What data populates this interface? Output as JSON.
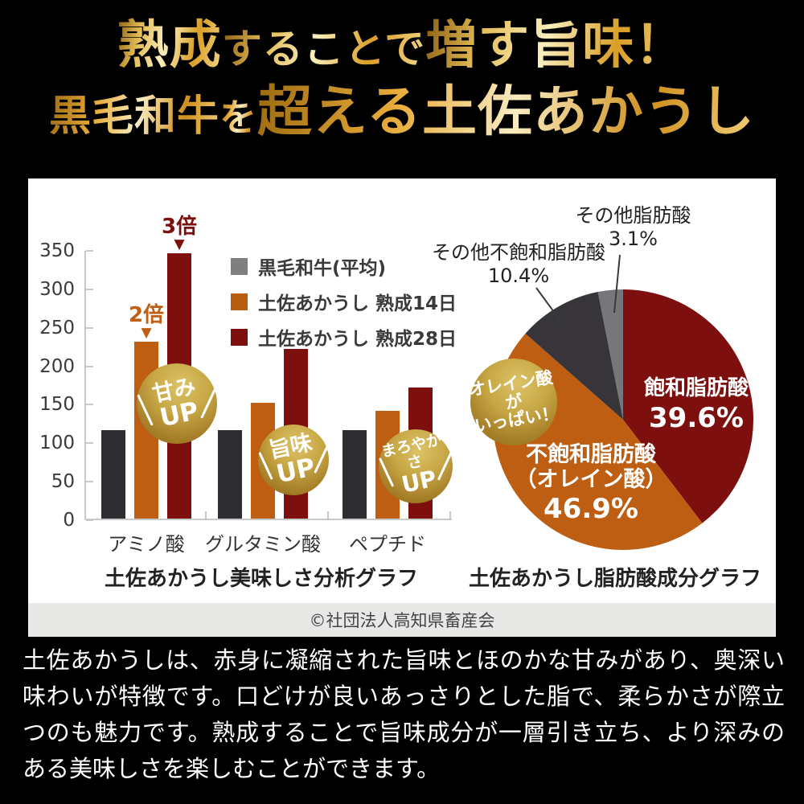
{
  "header": {
    "line1": [
      {
        "text": "熟成"
      },
      {
        "text": "することで"
      },
      {
        "text": "増す旨味！"
      }
    ],
    "line2": [
      {
        "text": "黒毛和牛"
      },
      {
        "text": "を"
      },
      {
        "text": "超える土佐あかうし"
      }
    ]
  },
  "chart_data": [
    {
      "type": "bar",
      "title": "土佐あかうし美味しさ分析グラフ",
      "categories": [
        "アミノ酸",
        "グルタミン酸",
        "ペプチド"
      ],
      "yticks": [
        0,
        50,
        100,
        150,
        200,
        250,
        300,
        350
      ],
      "ylim": [
        0,
        350
      ],
      "grid": false,
      "legend_position": "top-right",
      "series": [
        {
          "name": "黒毛和牛(平均)",
          "legend_color": "#7f7f7f",
          "bar_color": "#2e2d32",
          "values": [
            115,
            115,
            115
          ]
        },
        {
          "name": "土佐あかうし 熟成14日",
          "legend_color": "#b85c10",
          "bar_color": "#bd5e13",
          "values": [
            230,
            150,
            140
          ]
        },
        {
          "name": "土佐あかうし 熟成28日",
          "legend_color": "#7d100f",
          "bar_color": "#7d100f",
          "values": [
            345,
            220,
            170
          ]
        }
      ],
      "annotations": [
        {
          "text": "2倍",
          "color": "#c05e14",
          "series_index": 1,
          "category_index": 0,
          "arrow_icon": "▼"
        },
        {
          "text": "3倍",
          "color": "#7d100f",
          "series_index": 2,
          "category_index": 0,
          "arrow_icon": "▼"
        }
      ],
      "badges": [
        {
          "line1": "甘み",
          "line2": "UP"
        },
        {
          "line1": "旨味",
          "line2": "UP"
        },
        {
          "line1": "まろやかさ",
          "line2": "UP"
        }
      ]
    },
    {
      "type": "pie",
      "title": "土佐あかうし脂肪酸成分グラフ",
      "clockwise_from_top": true,
      "slices": [
        {
          "label": "飽和脂肪酸",
          "pct": "39.6%",
          "value": 39.6,
          "color": "#7d100f",
          "label_position": "inside"
        },
        {
          "label": "不飽和脂肪酸",
          "label2": "（オレイン酸）",
          "pct": "46.9%",
          "value": 46.9,
          "color": "#bd5e13",
          "label_position": "inside"
        },
        {
          "label": "その他不飽和脂肪酸",
          "pct": "10.4%",
          "value": 10.4,
          "color": "#37353a",
          "label_position": "outside"
        },
        {
          "label": "その他脂肪酸",
          "pct": "3.1%",
          "value": 3.1,
          "color": "#77767b",
          "label_position": "outside"
        }
      ],
      "badge": {
        "line1": "オレイン酸が",
        "line2": "いっぱい！"
      }
    }
  ],
  "copyright": "©社団法人高知県畜産会",
  "description": "土佐あかうしは、赤身に凝縮された旨味とほのかな甘みがあり、奥深い味わいが特徴です。口どけが良いあっさりとした脂で、柔らかさが際立つのも魅力です。熟成することで旨味成分が一層引き立ち、より深みのある美味しさを楽しむことができます。"
}
